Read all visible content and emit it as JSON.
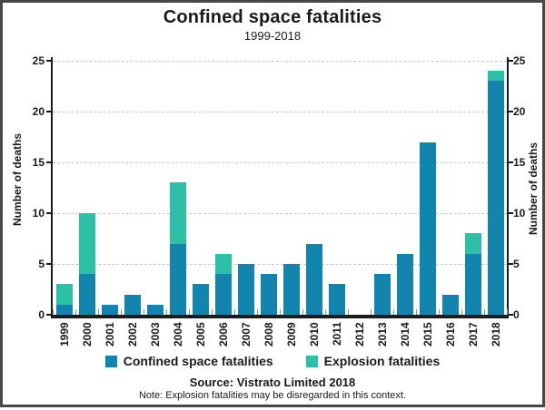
{
  "title": "Confined space fatalities",
  "subtitle": "1999-2018",
  "axis": {
    "y_label": "Number of deaths"
  },
  "legend": {
    "items": [
      {
        "label": "Confined space fatalities",
        "color": "#1185ad"
      },
      {
        "label": "Explosion fatalities",
        "color": "#2cc0a6"
      }
    ]
  },
  "footer": {
    "source": "Source: Vistrato Limited 2018",
    "note": "Note: Explosion fatalities may be disregarded in this context."
  },
  "chart_data": {
    "type": "bar",
    "stacked": true,
    "title": "Confined space fatalities",
    "subtitle": "1999-2018",
    "categories": [
      "1999",
      "2000",
      "2001",
      "2002",
      "2003",
      "2004",
      "2005",
      "2006",
      "2007",
      "2008",
      "2009",
      "2010",
      "2011",
      "2012",
      "2013",
      "2014",
      "2015",
      "2016",
      "2017",
      "2018"
    ],
    "series": [
      {
        "name": "Confined space fatalities",
        "color": "#1185ad",
        "values": [
          1,
          4,
          1,
          2,
          1,
          7,
          3,
          4,
          5,
          4,
          5,
          7,
          3,
          0,
          4,
          6,
          17,
          2,
          6,
          23
        ]
      },
      {
        "name": "Explosion fatalities",
        "color": "#2cc0a6",
        "values": [
          2,
          6,
          0,
          0,
          0,
          6,
          0,
          2,
          0,
          0,
          0,
          0,
          0,
          0,
          0,
          0,
          0,
          0,
          2,
          1
        ]
      }
    ],
    "xlabel": "",
    "ylabel": "Number of deaths",
    "ylim": [
      0,
      25
    ],
    "yticks": [
      0,
      5,
      10,
      15,
      20,
      25
    ],
    "grid": "horizontal-dashed",
    "legend_position": "bottom"
  }
}
